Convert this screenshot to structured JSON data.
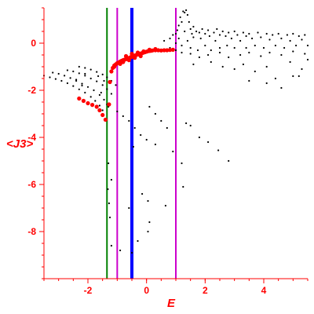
{
  "chart_data": {
    "type": "scatter",
    "xlabel": "E",
    "ylabel": "<J3>",
    "xlim": [
      -3.5,
      5.5
    ],
    "ylim": [
      -10,
      1.5
    ],
    "xticks": [
      "-2",
      "0",
      "2",
      "4"
    ],
    "yticks": [
      "0",
      "-2",
      "-4",
      "-6",
      "-8"
    ],
    "vertical_lines": [
      {
        "x": -1.35,
        "color": "#008000"
      },
      {
        "x": -1.0,
        "color": "#cc00cc"
      },
      {
        "x": -0.5,
        "color": "#0000ff"
      },
      {
        "x": 1.0,
        "color": "#cc00cc"
      }
    ],
    "series": [
      {
        "color": "#000000",
        "points": [
          [
            -3.5,
            -1.38
          ],
          [
            -3.3,
            -1.45
          ],
          [
            -3.1,
            -1.52
          ],
          [
            -2.9,
            -1.6
          ],
          [
            -2.7,
            -1.7
          ],
          [
            -2.5,
            -1.82
          ],
          [
            -2.3,
            -1.96
          ],
          [
            -2.1,
            -2.1
          ],
          [
            -1.9,
            -2.28
          ],
          [
            -1.75,
            -2.45
          ],
          [
            -1.6,
            -2.65
          ],
          [
            -1.5,
            -2.85
          ],
          [
            -3.2,
            -1.25
          ],
          [
            -3.0,
            -1.3
          ],
          [
            -2.8,
            -1.38
          ],
          [
            -2.6,
            -1.48
          ],
          [
            -2.4,
            -1.6
          ],
          [
            -2.2,
            -1.72
          ],
          [
            -2.0,
            -1.86
          ],
          [
            -1.8,
            -2.0
          ],
          [
            -1.6,
            -2.2
          ],
          [
            -1.45,
            -2.4
          ],
          [
            -1.35,
            -2.6
          ],
          [
            -2.7,
            -1.15
          ],
          [
            -2.5,
            -1.2
          ],
          [
            -2.3,
            -1.28
          ],
          [
            -2.1,
            -1.38
          ],
          [
            -1.9,
            -1.5
          ],
          [
            -1.7,
            -1.62
          ],
          [
            -1.5,
            -1.78
          ],
          [
            -1.35,
            -1.95
          ],
          [
            -1.2,
            -2.15
          ],
          [
            -2.3,
            -1.0
          ],
          [
            -2.1,
            -1.05
          ],
          [
            -1.9,
            -1.12
          ],
          [
            -1.7,
            -1.22
          ],
          [
            -1.5,
            -1.33
          ],
          [
            -1.35,
            -1.45
          ],
          [
            -1.2,
            -1.6
          ],
          [
            -1.05,
            -1.78
          ],
          [
            -1.3,
            -2.7
          ],
          [
            -1.0,
            -2.9
          ],
          [
            -0.8,
            -3.1
          ],
          [
            -0.6,
            -3.3
          ],
          [
            -0.4,
            -3.6
          ],
          [
            -0.2,
            -3.9
          ],
          [
            0.0,
            -4.1
          ],
          [
            0.1,
            -2.7
          ],
          [
            0.3,
            -3.0
          ],
          [
            0.5,
            -3.3
          ],
          [
            0.7,
            -3.6
          ],
          [
            -0.45,
            -4.4
          ],
          [
            -0.15,
            -6.4
          ],
          [
            0.05,
            -6.7
          ],
          [
            0.3,
            -4.3
          ],
          [
            0.65,
            -6.9
          ],
          [
            0.9,
            -4.6
          ],
          [
            1.2,
            -5.1
          ],
          [
            1.25,
            -6.1
          ],
          [
            1.35,
            -3.4
          ],
          [
            1.5,
            -3.5
          ],
          [
            1.8,
            -4.0
          ],
          [
            2.1,
            -4.2
          ],
          [
            2.45,
            -4.55
          ],
          [
            2.8,
            -5.0
          ],
          [
            -1.2,
            -8.6
          ],
          [
            -0.9,
            -8.8
          ],
          [
            -0.6,
            -7.0
          ],
          [
            -0.5,
            -8.9
          ],
          [
            -0.3,
            -8.4
          ],
          [
            0.1,
            -7.6
          ],
          [
            0.05,
            -8.0
          ],
          [
            -1.3,
            -5.1
          ],
          [
            -1.2,
            -5.8
          ],
          [
            -1.32,
            -6.2
          ],
          [
            -1.28,
            -6.8
          ],
          [
            -1.25,
            -7.4
          ],
          [
            -2.1,
            -1.3
          ],
          [
            -2.4,
            -1.55
          ],
          [
            -2.2,
            -1.8
          ],
          [
            -1.55,
            -2.1
          ],
          [
            -1.65,
            -1.4
          ],
          [
            -1.45,
            -1.6
          ],
          [
            0.6,
            0.1
          ],
          [
            0.6,
            -0.3
          ],
          [
            0.8,
            0.2
          ],
          [
            0.8,
            -0.2
          ],
          [
            0.9,
            0.35
          ],
          [
            1.0,
            0.4
          ],
          [
            1.0,
            0.0
          ],
          [
            1.05,
            0.55
          ],
          [
            1.1,
            0.75
          ],
          [
            1.1,
            0.2
          ],
          [
            1.15,
            1.1
          ],
          [
            1.2,
            0.9
          ],
          [
            1.2,
            -0.1
          ],
          [
            1.25,
            1.35
          ],
          [
            1.3,
            1.3
          ],
          [
            1.3,
            0.5
          ],
          [
            1.35,
            1.4
          ],
          [
            1.4,
            1.2
          ],
          [
            1.4,
            0.1
          ],
          [
            1.45,
            0.9
          ],
          [
            1.5,
            0.6
          ],
          [
            1.5,
            -0.2
          ],
          [
            1.55,
            0.4
          ],
          [
            1.6,
            0.25
          ],
          [
            1.6,
            0.7
          ],
          [
            1.7,
            0.5
          ],
          [
            1.75,
            -0.3
          ],
          [
            1.8,
            0.45
          ],
          [
            1.85,
            0.2
          ],
          [
            1.9,
            0.6
          ],
          [
            2.0,
            0.4
          ],
          [
            2.0,
            -0.1
          ],
          [
            2.1,
            0.55
          ],
          [
            2.15,
            0.3
          ],
          [
            2.2,
            -0.3
          ],
          [
            2.3,
            0.45
          ],
          [
            2.35,
            0.1
          ],
          [
            2.4,
            0.6
          ],
          [
            2.5,
            0.35
          ],
          [
            2.5,
            -0.2
          ],
          [
            2.6,
            0.5
          ],
          [
            2.7,
            0.3
          ],
          [
            2.75,
            -0.1
          ],
          [
            2.8,
            0.45
          ],
          [
            2.9,
            0.2
          ],
          [
            3.0,
            0.5
          ],
          [
            3.0,
            -0.2
          ],
          [
            3.1,
            0.35
          ],
          [
            3.2,
            0.1
          ],
          [
            3.3,
            0.45
          ],
          [
            3.4,
            0.3
          ],
          [
            3.4,
            -0.2
          ],
          [
            3.5,
            0.4
          ],
          [
            3.6,
            0.2
          ],
          [
            3.7,
            -0.1
          ],
          [
            3.8,
            0.45
          ],
          [
            3.9,
            0.25
          ],
          [
            4.0,
            -0.2
          ],
          [
            4.1,
            0.4
          ],
          [
            4.2,
            0.15
          ],
          [
            4.3,
            0.35
          ],
          [
            4.4,
            -0.1
          ],
          [
            4.5,
            0.4
          ],
          [
            4.6,
            0.2
          ],
          [
            4.7,
            -0.2
          ],
          [
            4.8,
            0.35
          ],
          [
            4.9,
            0.1
          ],
          [
            5.0,
            0.4
          ],
          [
            5.1,
            -0.1
          ],
          [
            5.2,
            0.3
          ],
          [
            5.3,
            0.15
          ],
          [
            5.4,
            0.35
          ],
          [
            5.5,
            -0.1
          ],
          [
            1.0,
            -0.3
          ],
          [
            1.2,
            -0.4
          ],
          [
            1.5,
            -0.45
          ],
          [
            1.8,
            -0.6
          ],
          [
            2.1,
            -0.5
          ],
          [
            2.5,
            -0.4
          ],
          [
            2.8,
            -0.6
          ],
          [
            3.2,
            -0.5
          ],
          [
            3.5,
            -0.4
          ],
          [
            3.9,
            -0.55
          ],
          [
            4.2,
            -0.4
          ],
          [
            4.6,
            -0.5
          ],
          [
            5.0,
            -0.35
          ],
          [
            5.4,
            -0.45
          ],
          [
            1.6,
            -0.9
          ],
          [
            2.2,
            -0.8
          ],
          [
            2.6,
            -1.0
          ],
          [
            3.0,
            -1.1
          ],
          [
            3.3,
            -0.9
          ],
          [
            3.7,
            -1.2
          ],
          [
            4.1,
            -1.0
          ],
          [
            4.4,
            -1.5
          ],
          [
            4.9,
            -0.8
          ],
          [
            5.2,
            -1.4
          ],
          [
            3.5,
            -1.6
          ],
          [
            4.1,
            -1.7
          ],
          [
            4.6,
            -1.9
          ],
          [
            5.0,
            -1.4
          ],
          [
            5.3,
            -1.1
          ],
          [
            5.5,
            -0.7
          ]
        ]
      },
      {
        "color": "#ff0000",
        "points": [
          [
            -2.3,
            -2.35
          ],
          [
            -2.15,
            -2.45
          ],
          [
            -2.0,
            -2.55
          ],
          [
            -1.85,
            -2.62
          ],
          [
            -1.7,
            -2.7
          ],
          [
            -1.6,
            -2.85
          ],
          [
            -1.5,
            -3.05
          ],
          [
            -1.4,
            -3.25
          ],
          [
            -1.28,
            -2.6
          ],
          [
            -1.25,
            -1.65
          ],
          [
            -1.2,
            -1.2
          ],
          [
            -1.15,
            -1.05
          ],
          [
            -1.1,
            -0.95
          ],
          [
            -1.05,
            -0.9
          ],
          [
            -1.0,
            -0.85
          ],
          [
            -0.95,
            -0.82
          ],
          [
            -0.9,
            -0.78
          ],
          [
            -0.85,
            -0.75
          ],
          [
            -0.8,
            -0.72
          ],
          [
            -0.75,
            -0.7
          ],
          [
            -0.7,
            -0.68
          ],
          [
            -0.65,
            -0.66
          ],
          [
            -0.6,
            -0.63
          ],
          [
            -0.55,
            -0.6
          ],
          [
            -0.5,
            -0.58
          ],
          [
            -0.45,
            -0.55
          ],
          [
            -0.4,
            -0.53
          ],
          [
            -0.35,
            -0.5
          ],
          [
            -0.3,
            -0.48
          ],
          [
            -0.25,
            -0.46
          ],
          [
            -0.2,
            -0.44
          ],
          [
            -0.15,
            -0.42
          ],
          [
            -0.1,
            -0.4
          ],
          [
            -0.05,
            -0.38
          ],
          [
            0.0,
            -0.36
          ],
          [
            0.05,
            -0.34
          ],
          [
            0.1,
            -0.33
          ],
          [
            0.15,
            -0.32
          ],
          [
            0.2,
            -0.31
          ],
          [
            0.3,
            -0.3
          ],
          [
            0.4,
            -0.3
          ],
          [
            0.5,
            -0.31
          ],
          [
            0.6,
            -0.3
          ],
          [
            0.7,
            -0.3
          ],
          [
            0.8,
            -0.29
          ],
          [
            0.9,
            -0.28
          ],
          [
            -0.7,
            -0.55
          ],
          [
            -0.5,
            -0.45
          ],
          [
            -0.3,
            -0.4
          ],
          [
            -0.1,
            -0.35
          ],
          [
            0.1,
            -0.28
          ],
          [
            0.3,
            -0.25
          ],
          [
            -0.6,
            -0.72
          ],
          [
            -0.4,
            -0.62
          ],
          [
            -0.2,
            -0.55
          ],
          [
            -1.1,
            -1.0
          ],
          [
            -0.9,
            -0.88
          ],
          [
            -0.8,
            -0.8
          ]
        ]
      }
    ]
  }
}
